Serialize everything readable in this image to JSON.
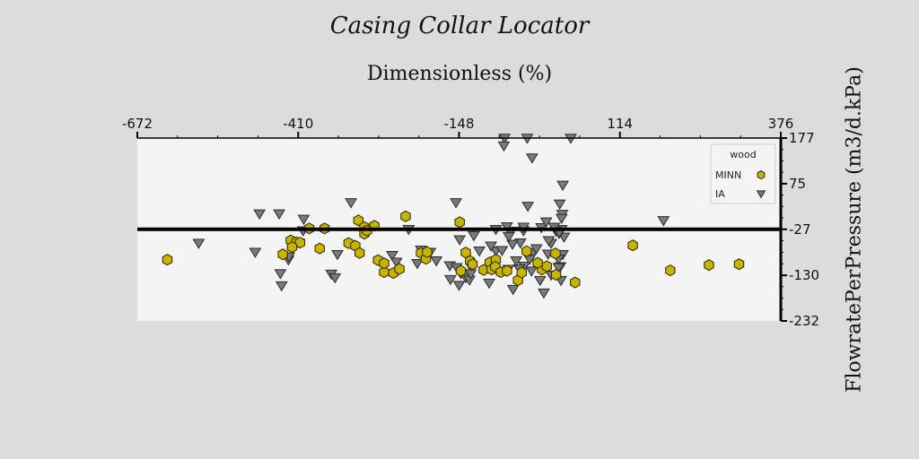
{
  "chart_data": {
    "type": "scatter",
    "title": "Casing Collar Locator",
    "xlabel": "Dimensionless (%)",
    "ylabel": "FlowratePerPressure (m3/d.kPa)",
    "xlim": [
      -672,
      376
    ],
    "ylim": [
      -232,
      177
    ],
    "x_ticks": [
      -672,
      -410,
      -148,
      114,
      376
    ],
    "y_ticks": [
      177,
      75,
      -27,
      -130,
      -232
    ],
    "x_axis_position": "top",
    "y_axis_position": "right",
    "reference_line_y": -27,
    "grid": false,
    "legend": {
      "title": "wood",
      "position": "top-right"
    },
    "series": [
      {
        "name": "MINN",
        "marker": "hexagon",
        "color": "#c8b400",
        "points": [
          [
            -623,
            -95
          ],
          [
            -435,
            -83
          ],
          [
            -422,
            -52
          ],
          [
            -413,
            -56
          ],
          [
            -407,
            -57
          ],
          [
            -420,
            -67
          ],
          [
            -392,
            -25
          ],
          [
            -367,
            -25
          ],
          [
            -375,
            -70
          ],
          [
            -328,
            -58
          ],
          [
            -317,
            -64
          ],
          [
            -310,
            -80
          ],
          [
            -312,
            -7
          ],
          [
            -302,
            -22
          ],
          [
            -302,
            -37
          ],
          [
            -286,
            -19
          ],
          [
            -270,
            -123
          ],
          [
            -280,
            -96
          ],
          [
            -270,
            -103
          ],
          [
            -255,
            -125
          ],
          [
            -245,
            -116
          ],
          [
            -235,
            2
          ],
          [
            -210,
            -80
          ],
          [
            -202,
            -93
          ],
          [
            -147,
            -11
          ],
          [
            -137,
            -79
          ],
          [
            -130,
            -98
          ],
          [
            -145,
            -120
          ],
          [
            -108,
            -118
          ],
          [
            -98,
            -101
          ],
          [
            -88,
            -95
          ],
          [
            -95,
            -117
          ],
          [
            -89,
            -111
          ],
          [
            -80,
            -123
          ],
          [
            -70,
            -120
          ],
          [
            -52,
            -141
          ],
          [
            -38,
            -76
          ],
          [
            -46,
            -124
          ],
          [
            -13,
            -117
          ],
          [
            9,
            -81
          ],
          [
            10,
            -129
          ],
          [
            -5,
            -110
          ],
          [
            -20,
            -102
          ],
          [
            -126,
            -105
          ],
          [
            -200,
            -78
          ],
          [
            -298,
            -30
          ],
          [
            41,
            -146
          ],
          [
            135,
            -63
          ],
          [
            196,
            -119
          ],
          [
            259,
            -107
          ],
          [
            308,
            -105
          ]
        ]
      },
      {
        "name": "IA",
        "marker": "triangle-down",
        "color": "#7a7a7a",
        "points": [
          [
            -572,
            -58
          ],
          [
            -480,
            -78
          ],
          [
            -473,
            8
          ],
          [
            -441,
            8
          ],
          [
            -401,
            -4
          ],
          [
            -426,
            -95
          ],
          [
            -439,
            -126
          ],
          [
            -437,
            -153
          ],
          [
            -409,
            -57
          ],
          [
            -402,
            -30
          ],
          [
            -419,
            -59
          ],
          [
            -425,
            -88
          ],
          [
            -356,
            -127
          ],
          [
            -350,
            -135
          ],
          [
            -346,
            -83
          ],
          [
            -324,
            33
          ],
          [
            -257,
            -85
          ],
          [
            -250,
            -100
          ],
          [
            -230,
            -27
          ],
          [
            -210,
            -73
          ],
          [
            -195,
            -78
          ],
          [
            -163,
            -108
          ],
          [
            -145,
            -126
          ],
          [
            -162,
            -139
          ],
          [
            -148,
            -152
          ],
          [
            -137,
            -135
          ],
          [
            -131,
            -140
          ],
          [
            -99,
            -147
          ],
          [
            -88,
            -75
          ],
          [
            -78,
            -74
          ],
          [
            -63,
            -31
          ],
          [
            -70,
            -21
          ],
          [
            -60,
            -161
          ],
          [
            -48,
            -57
          ],
          [
            -42,
            -109
          ],
          [
            -36,
            25
          ],
          [
            -29,
            133
          ],
          [
            -16,
            -141
          ],
          [
            -10,
            -169
          ],
          [
            17,
            -110
          ],
          [
            18,
            -141
          ],
          [
            21,
            72
          ],
          [
            23,
            -44
          ],
          [
            19,
            -27
          ],
          [
            10,
            -31
          ],
          [
            20,
            7
          ],
          [
            2,
            -58
          ],
          [
            15,
            -36
          ],
          [
            -14,
            -23
          ],
          [
            -3,
            -82
          ],
          [
            -153,
            33
          ],
          [
            -43,
            -30
          ],
          [
            -43,
            -22
          ],
          [
            -68,
            -116
          ],
          [
            -88,
            -27
          ],
          [
            -152,
            -112
          ],
          [
            -128,
            -112
          ],
          [
            -185,
            -97
          ],
          [
            -216,
            -103
          ],
          [
            14,
            -112
          ],
          [
            21,
            -83
          ],
          [
            -37,
            183
          ],
          [
            -74,
            195
          ],
          [
            34,
            185
          ],
          [
            185,
            -7
          ],
          [
            7,
            -22
          ],
          [
            16,
            30
          ],
          [
            -61,
            -60
          ],
          [
            -124,
            -41
          ],
          [
            -147,
            -50
          ],
          [
            -129,
            -126
          ],
          [
            -115,
            -75
          ],
          [
            -96,
            -64
          ],
          [
            19,
            -2
          ],
          [
            -27,
            -79
          ],
          [
            -30,
            -120
          ],
          [
            -50,
            -115
          ],
          [
            -6,
            -10
          ],
          [
            -75,
            160
          ],
          [
            -2,
            -52
          ],
          [
            15,
            -34
          ],
          [
            14,
            -93
          ],
          [
            2,
            -129
          ],
          [
            -55,
            -97
          ],
          [
            -22,
            -70
          ],
          [
            -67,
            -43
          ],
          [
            -33,
            -94
          ]
        ]
      }
    ]
  }
}
